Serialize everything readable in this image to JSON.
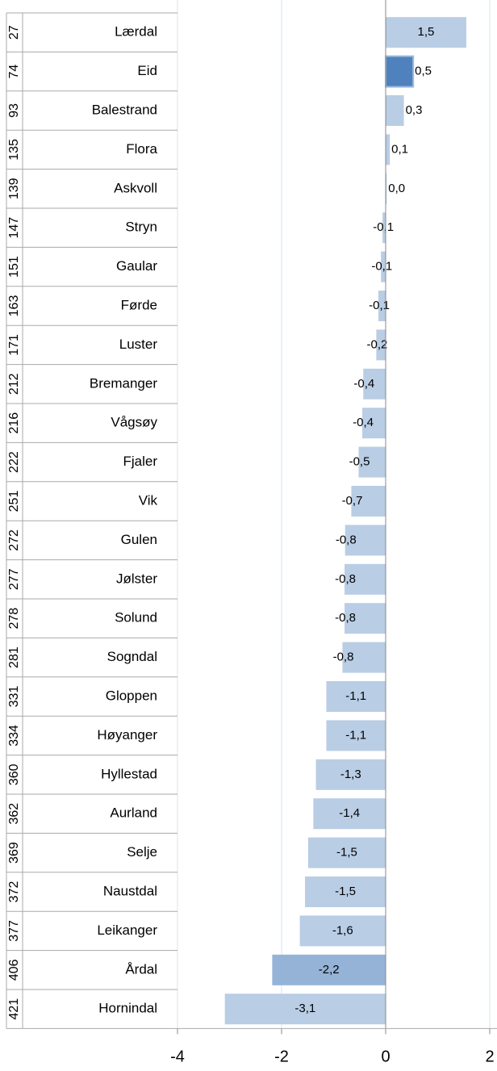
{
  "chart_data": {
    "type": "bar",
    "orientation": "horizontal",
    "ranks": [
      27,
      74,
      93,
      135,
      139,
      147,
      151,
      163,
      171,
      212,
      216,
      222,
      251,
      272,
      277,
      278,
      281,
      331,
      334,
      360,
      362,
      369,
      372,
      377,
      406,
      421
    ],
    "categories": [
      "Lærdal",
      "Eid",
      "Balestrand",
      "Flora",
      "Askvoll",
      "Stryn",
      "Gaular",
      "Førde",
      "Luster",
      "Bremanger",
      "Vågsøy",
      "Fjaler",
      "Vik",
      "Gulen",
      "Jølster",
      "Solund",
      "Sogndal",
      "Gloppen",
      "Høyanger",
      "Hyllestad",
      "Aurland",
      "Selje",
      "Naustdal",
      "Leikanger",
      "Årdal",
      "Hornindal"
    ],
    "values": [
      1.55,
      0.53,
      0.35,
      0.08,
      0.02,
      -0.06,
      -0.09,
      -0.14,
      -0.18,
      -0.43,
      -0.45,
      -0.52,
      -0.66,
      -0.78,
      -0.79,
      -0.79,
      -0.83,
      -1.14,
      -1.14,
      -1.34,
      -1.39,
      -1.49,
      -1.55,
      -1.65,
      -2.18,
      -3.09
    ],
    "value_labels": [
      "1,5",
      "0,5",
      "0,3",
      "0,1",
      "0,0",
      "-0,1",
      "-0,1",
      "-0,1",
      "-0,2",
      "-0,4",
      "-0,4",
      "-0,5",
      "-0,7",
      "-0,8",
      "-0,8",
      "-0,8",
      "-0,8",
      "-1,1",
      "-1,1",
      "-1,3",
      "-1,4",
      "-1,5",
      "-1,5",
      "-1,6",
      "-2,2",
      "-3,1"
    ],
    "colors": [
      "#b9cde5",
      "#4f81bd",
      "#b9cde5",
      "#b9cde5",
      "#b9cde5",
      "#b9cde5",
      "#b9cde5",
      "#b9cde5",
      "#b9cde5",
      "#b9cde5",
      "#b9cde5",
      "#b9cde5",
      "#b9cde5",
      "#b9cde5",
      "#b9cde5",
      "#b9cde5",
      "#b9cde5",
      "#b9cde5",
      "#b9cde5",
      "#b9cde5",
      "#b9cde5",
      "#b9cde5",
      "#b9cde5",
      "#b9cde5",
      "#95b3d7",
      "#b9cde5"
    ],
    "xlim": [
      -4,
      2
    ],
    "xticks": [
      -4,
      -2,
      0,
      2
    ],
    "grid": true
  }
}
